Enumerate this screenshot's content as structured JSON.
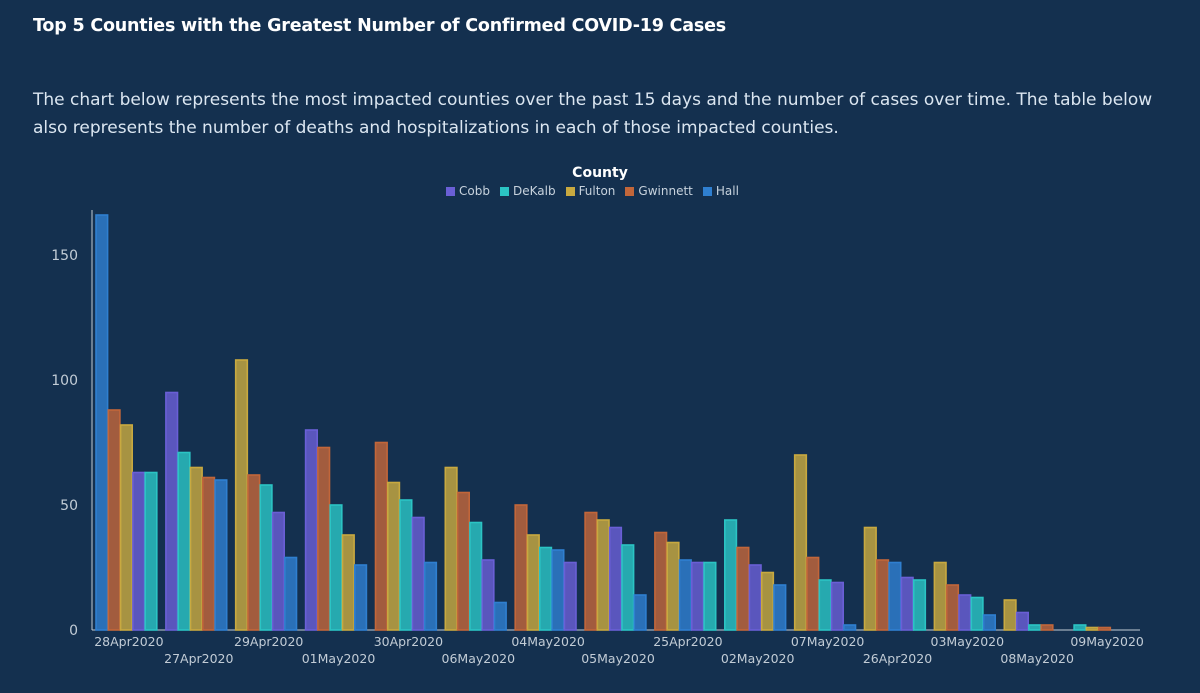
{
  "title": "Top 5 Counties with the Greatest Number of Confirmed COVID-19 Cases",
  "description": "The chart below represents the most impacted counties over the past 15 days and the number of cases over time. The table below also represents the number of deaths and hospitalizations in each of those impacted counties.",
  "chart_data": {
    "type": "bar",
    "legend_title": "County",
    "legend_position": "top-center",
    "grid": false,
    "ylim": [
      0,
      168
    ],
    "yticks": [
      0,
      50,
      100,
      150
    ],
    "categories": [
      "28Apr2020",
      "27Apr2020",
      "29Apr2020",
      "01May2020",
      "30Apr2020",
      "06May2020",
      "04May2020",
      "05May2020",
      "25Apr2020",
      "02May2020",
      "07May2020",
      "26Apr2020",
      "03May2020",
      "08May2020",
      "09May2020"
    ],
    "category_order_in_group": [
      [
        "Hall",
        "Gwinnett",
        "Fulton",
        "Cobb",
        "DeKalb"
      ],
      [
        "Cobb",
        "DeKalb",
        "Fulton",
        "Gwinnett",
        "Hall"
      ],
      [
        "Fulton",
        "Gwinnett",
        "DeKalb",
        "Cobb",
        "Hall"
      ],
      [
        "Cobb",
        "Gwinnett",
        "DeKalb",
        "Fulton",
        "Hall"
      ],
      [
        "Gwinnett",
        "Fulton",
        "DeKalb",
        "Cobb",
        "Hall"
      ],
      [
        "Fulton",
        "Gwinnett",
        "DeKalb",
        "Cobb",
        "Hall"
      ],
      [
        "Gwinnett",
        "Fulton",
        "DeKalb",
        "Hall",
        "Cobb"
      ],
      [
        "Gwinnett",
        "Fulton",
        "Cobb",
        "DeKalb",
        "Hall"
      ],
      [
        "Gwinnett",
        "Fulton",
        "Hall",
        "Cobb",
        "DeKalb"
      ],
      [
        "DeKalb",
        "Gwinnett",
        "Cobb",
        "Fulton",
        "Hall"
      ],
      [
        "Fulton",
        "Gwinnett",
        "DeKalb",
        "Cobb",
        "Hall"
      ],
      [
        "Fulton",
        "Gwinnett",
        "Hall",
        "Cobb",
        "DeKalb"
      ],
      [
        "Fulton",
        "Gwinnett",
        "Cobb",
        "DeKalb",
        "Hall"
      ],
      [
        "Fulton",
        "Cobb",
        "DeKalb",
        "Gwinnett"
      ],
      [
        "DeKalb",
        "Fulton",
        "Gwinnett"
      ]
    ],
    "series": [
      {
        "name": "Cobb",
        "color": "#6a5fd6",
        "values": [
          63,
          95,
          47,
          80,
          45,
          28,
          27,
          41,
          27,
          26,
          19,
          21,
          14,
          7,
          null
        ]
      },
      {
        "name": "DeKalb",
        "color": "#2bc4c4",
        "values": [
          63,
          71,
          58,
          50,
          52,
          43,
          33,
          34,
          27,
          44,
          20,
          20,
          13,
          2,
          2
        ]
      },
      {
        "name": "Fulton",
        "color": "#c8a940",
        "values": [
          82,
          65,
          108,
          38,
          59,
          65,
          38,
          44,
          35,
          23,
          70,
          41,
          27,
          12,
          1
        ]
      },
      {
        "name": "Gwinnett",
        "color": "#c2663a",
        "values": [
          88,
          61,
          62,
          73,
          75,
          55,
          50,
          47,
          39,
          33,
          29,
          28,
          18,
          2,
          1
        ]
      },
      {
        "name": "Hall",
        "color": "#2f7fd0",
        "values": [
          166,
          60,
          29,
          26,
          27,
          11,
          32,
          14,
          28,
          18,
          2,
          27,
          6,
          null,
          null
        ]
      }
    ]
  }
}
